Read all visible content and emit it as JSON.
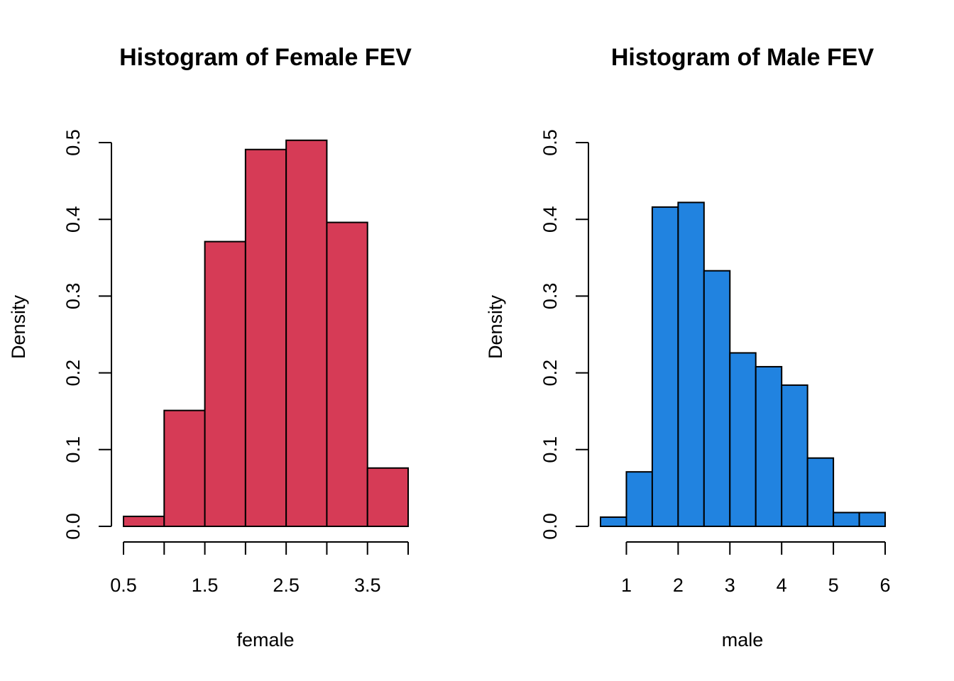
{
  "chart_data": [
    {
      "type": "bar",
      "title": "Histogram of Female FEV",
      "xlabel": "female",
      "ylabel": "Density",
      "color": "#d63b56",
      "xlim": [
        0.5,
        4.0
      ],
      "ylim": [
        0,
        0.5
      ],
      "xticks": [
        0.5,
        1.0,
        1.5,
        2.0,
        2.5,
        3.0,
        3.5,
        4.0
      ],
      "xtick_labels": [
        "0.5",
        "",
        "1.5",
        "",
        "2.5",
        "",
        "3.5",
        ""
      ],
      "yticks": [
        0,
        0.1,
        0.2,
        0.3,
        0.4,
        0.5
      ],
      "ytick_labels": [
        "0.0",
        "0.1",
        "0.2",
        "0.3",
        "0.4",
        "0.5"
      ],
      "bins": [
        {
          "x0": 0.5,
          "x1": 1.0,
          "density": 0.013
        },
        {
          "x0": 1.0,
          "x1": 1.5,
          "density": 0.151
        },
        {
          "x0": 1.5,
          "x1": 2.0,
          "density": 0.371
        },
        {
          "x0": 2.0,
          "x1": 2.5,
          "density": 0.491
        },
        {
          "x0": 2.5,
          "x1": 3.0,
          "density": 0.503
        },
        {
          "x0": 3.0,
          "x1": 3.5,
          "density": 0.396
        },
        {
          "x0": 3.5,
          "x1": 4.0,
          "density": 0.076
        }
      ]
    },
    {
      "type": "bar",
      "title": "Histogram of Male FEV",
      "xlabel": "male",
      "ylabel": "Density",
      "color": "#2183e0",
      "xlim": [
        0.5,
        6.0
      ],
      "ylim": [
        0,
        0.5
      ],
      "xticks": [
        1,
        2,
        3,
        4,
        5,
        6
      ],
      "xtick_labels": [
        "1",
        "2",
        "3",
        "4",
        "5",
        "6"
      ],
      "yticks": [
        0,
        0.1,
        0.2,
        0.3,
        0.4,
        0.5
      ],
      "ytick_labels": [
        "0.0",
        "0.1",
        "0.2",
        "0.3",
        "0.4",
        "0.5"
      ],
      "bins": [
        {
          "x0": 0.5,
          "x1": 1.0,
          "density": 0.012
        },
        {
          "x0": 1.0,
          "x1": 1.5,
          "density": 0.071
        },
        {
          "x0": 1.5,
          "x1": 2.0,
          "density": 0.416
        },
        {
          "x0": 2.0,
          "x1": 2.5,
          "density": 0.422
        },
        {
          "x0": 2.5,
          "x1": 3.0,
          "density": 0.333
        },
        {
          "x0": 3.0,
          "x1": 3.5,
          "density": 0.226
        },
        {
          "x0": 3.5,
          "x1": 4.0,
          "density": 0.208
        },
        {
          "x0": 4.0,
          "x1": 4.5,
          "density": 0.184
        },
        {
          "x0": 4.5,
          "x1": 5.0,
          "density": 0.089
        },
        {
          "x0": 5.0,
          "x1": 5.5,
          "density": 0.018
        },
        {
          "x0": 5.5,
          "x1": 6.0,
          "density": 0.018
        }
      ]
    }
  ]
}
